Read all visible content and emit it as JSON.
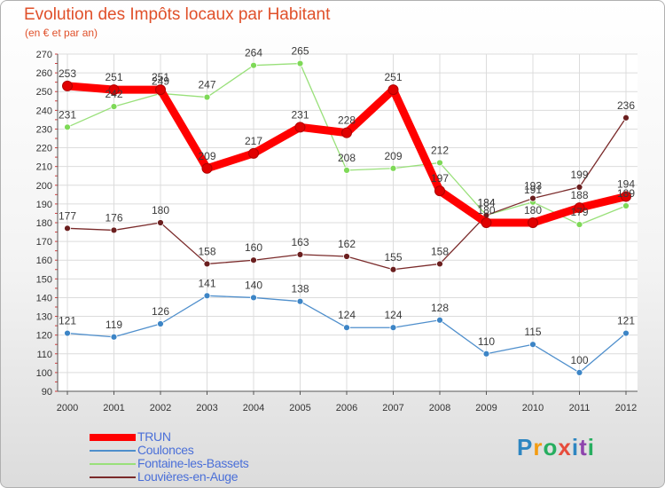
{
  "title": "Evolution des Impôts locaux par Habitant",
  "subtitle": "(en € et par an)",
  "logo": {
    "text": "Proxiti",
    "letters": [
      {
        "ch": "P",
        "color": "#2e86c1"
      },
      {
        "ch": "r",
        "color": "#f39c12"
      },
      {
        "ch": "o",
        "color": "#27ae60"
      },
      {
        "ch": "x",
        "color": "#e74c3c"
      },
      {
        "ch": "i",
        "color": "#2e86c1"
      },
      {
        "ch": "t",
        "color": "#8e44ad"
      },
      {
        "ch": "i",
        "color": "#27ae60"
      }
    ]
  },
  "chart_data": {
    "type": "line",
    "title": "Evolution des Impôts locaux par Habitant",
    "subtitle": "(en € et par an)",
    "x": [
      "2000",
      "2001",
      "2002",
      "2003",
      "2004",
      "2005",
      "2006",
      "2007",
      "2008",
      "2009",
      "2010",
      "2011",
      "2012"
    ],
    "ylim": [
      90,
      270
    ],
    "yticks": [
      90,
      100,
      110,
      120,
      130,
      140,
      150,
      160,
      170,
      180,
      190,
      200,
      210,
      220,
      230,
      240,
      250,
      260,
      270
    ],
    "grid": true,
    "legend_position": "bottom-left",
    "series": [
      {
        "name": "TRUN",
        "color": "#ff0000",
        "emphasis": true,
        "values": [
          253,
          251,
          251,
          209,
          217,
          231,
          228,
          251,
          197,
          180,
          180,
          188,
          194
        ],
        "labels": [
          "253",
          "251",
          "251",
          "209",
          "217",
          "231",
          "228",
          "251",
          "197",
          "180",
          "180",
          "188",
          "194"
        ]
      },
      {
        "name": "Coulonces",
        "color": "#4f8fcc",
        "point_color": "#3d85c6",
        "values": [
          121,
          119,
          126,
          141,
          140,
          138,
          124,
          124,
          128,
          110,
          115,
          100,
          121
        ],
        "labels": [
          "121",
          "119",
          "126",
          "141",
          "140",
          "138",
          "124",
          "124",
          "128",
          "110",
          "115",
          "100",
          "121"
        ]
      },
      {
        "name": "Fontaine-les-Bassets",
        "color": "#99e07a",
        "point_color": "#7ed957",
        "values": [
          231,
          242,
          249,
          247,
          264,
          265,
          208,
          209,
          212,
          184,
          191,
          179,
          189
        ],
        "labels": [
          "231",
          "242",
          "249",
          "247",
          "264",
          "265",
          "208",
          "209",
          "212",
          "184",
          "191",
          "179",
          "189"
        ]
      },
      {
        "name": "Louvières-en-Auge",
        "color": "#7a2a2a",
        "point_color": "#6b1f1f",
        "values": [
          177,
          176,
          180,
          158,
          160,
          163,
          162,
          155,
          158,
          184,
          193,
          199,
          236
        ],
        "labels": [
          "177",
          "176",
          "180",
          "158",
          "160",
          "163",
          "162",
          "155",
          "158",
          "184",
          "193",
          "199",
          "236"
        ]
      }
    ]
  }
}
